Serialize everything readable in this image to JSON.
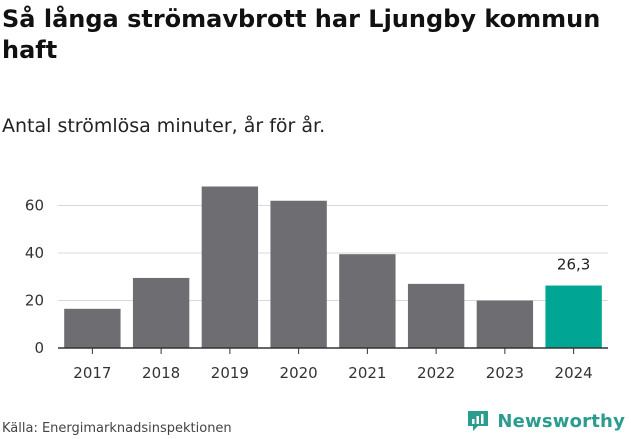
{
  "header": {
    "title": "Så långa strömavbrott har Ljungby kommun haft",
    "subtitle": "Antal strömlösa minuter, år för år."
  },
  "footer": {
    "source": "Källa: Energimarknadsinspektionen",
    "brand": "Newsworthy"
  },
  "colors": {
    "bar_default": "#6e6d72",
    "bar_highlight": "#00a693",
    "grid": "#d9d9d9",
    "axis": "#333333",
    "brand": "#2a9d8f"
  },
  "chart_data": {
    "type": "bar",
    "title": "Så långa strömavbrott har Ljungby kommun haft",
    "subtitle": "Antal strömlösa minuter, år för år.",
    "xlabel": "",
    "ylabel": "",
    "categories": [
      "2017",
      "2018",
      "2019",
      "2020",
      "2021",
      "2022",
      "2023",
      "2024"
    ],
    "values": [
      16.5,
      29.5,
      68.0,
      62.0,
      39.5,
      27.0,
      20.0,
      26.3
    ],
    "highlight_index": 7,
    "data_labels": [
      {
        "index": 7,
        "text": "26,3"
      }
    ],
    "ylim": [
      0,
      72
    ],
    "yticks": [
      0,
      20,
      40,
      60
    ],
    "ytick_labels": [
      "0",
      "20",
      "40",
      "60"
    ],
    "grid": true
  }
}
